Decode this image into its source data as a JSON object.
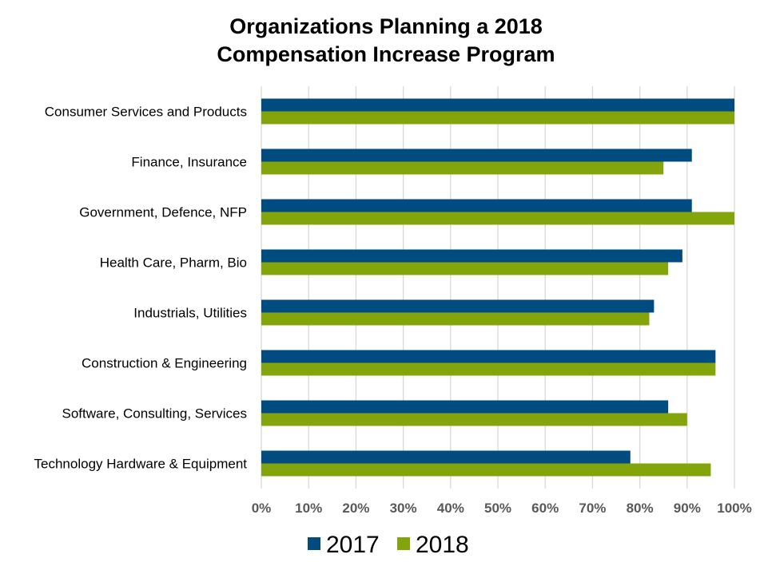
{
  "chart_data": {
    "type": "bar",
    "orientation": "horizontal",
    "title_lines": [
      "Organizations Planning a 2018",
      "Compensation Increase Program"
    ],
    "categories": [
      "Consumer Services and Products",
      "Finance, Insurance",
      "Government, Defence, NFP",
      "Health Care, Pharm, Bio",
      "Industrials, Utilities",
      "Construction & Engineering",
      "Software, Consulting, Services",
      "Technology Hardware & Equipment"
    ],
    "series": [
      {
        "name": "2017",
        "color": "#004b7f",
        "values": [
          100,
          91,
          91,
          89,
          83,
          96,
          86,
          78
        ]
      },
      {
        "name": "2018",
        "color": "#84a40c",
        "values": [
          100,
          85,
          100,
          86,
          82,
          96,
          90,
          95
        ]
      }
    ],
    "xlim": [
      0,
      100
    ],
    "x_ticks": [
      0,
      10,
      20,
      30,
      40,
      50,
      60,
      70,
      80,
      90,
      100
    ],
    "x_tick_labels": [
      "0%",
      "10%",
      "20%",
      "30%",
      "40%",
      "50%",
      "60%",
      "70%",
      "80%",
      "90%",
      "100%"
    ],
    "grid": true,
    "legend_position": "bottom"
  }
}
